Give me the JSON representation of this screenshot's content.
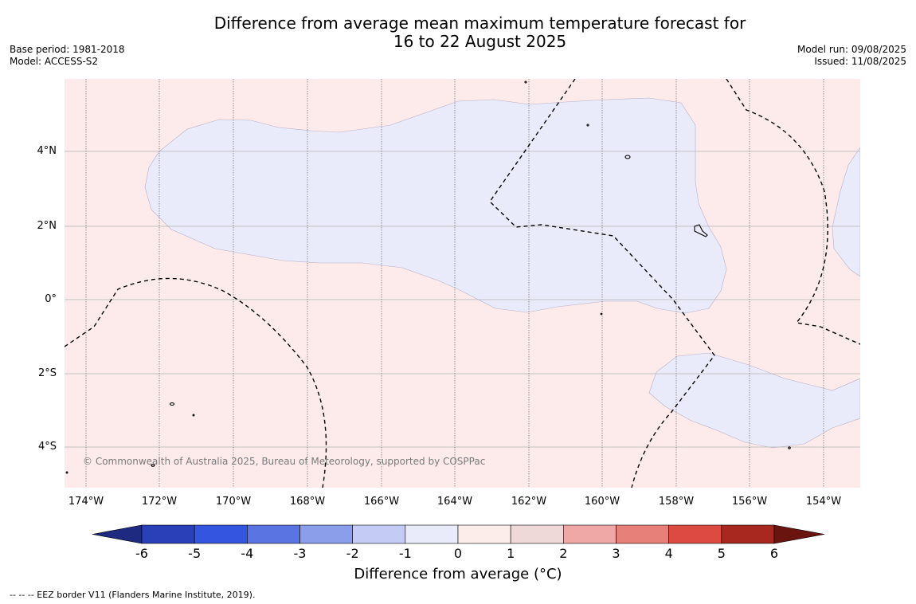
{
  "title_line1": "Difference from average mean maximum temperature forecast for",
  "title_line2": "16 to 22 August 2025",
  "base_period": "Base period: 1981-2018",
  "model": "Model: ACCESS-S2",
  "model_run": "Model run: 09/08/2025",
  "issued": "Issued: 11/08/2025",
  "copyright": "© Commonwealth of Australia 2025, Bureau of Meteorology, supported by COSPPac",
  "lat_labels": [
    "4°N",
    "2°N",
    "0°",
    "2°S",
    "4°S"
  ],
  "lon_labels": [
    "174°W",
    "172°W",
    "170°W",
    "168°W",
    "166°W",
    "164°W",
    "162°W",
    "160°W",
    "158°W",
    "156°W",
    "154°W"
  ],
  "colorbar": {
    "title": "Difference from average (°C)",
    "ticks": [
      "-6",
      "-5",
      "-4",
      "-3",
      "-2",
      "-1",
      "0",
      "1",
      "2",
      "3",
      "4",
      "5",
      "6"
    ],
    "colors": [
      "#1e2a80",
      "#2a40b8",
      "#3355e0",
      "#5a75e2",
      "#8a9eea",
      "#c4ccf5",
      "#e9ebfa",
      "#fcecea",
      "#eed8d8",
      "#f0a8a6",
      "#e8807a",
      "#dc4a42",
      "#a82820",
      "#6a1410"
    ],
    "background_anomaly_color": "#fcebea",
    "cool_anomaly_color": "#e9ebfa"
  },
  "footnote": "--  --  -- EEZ border V11 (Flanders Marine Institute, 2019)."
}
